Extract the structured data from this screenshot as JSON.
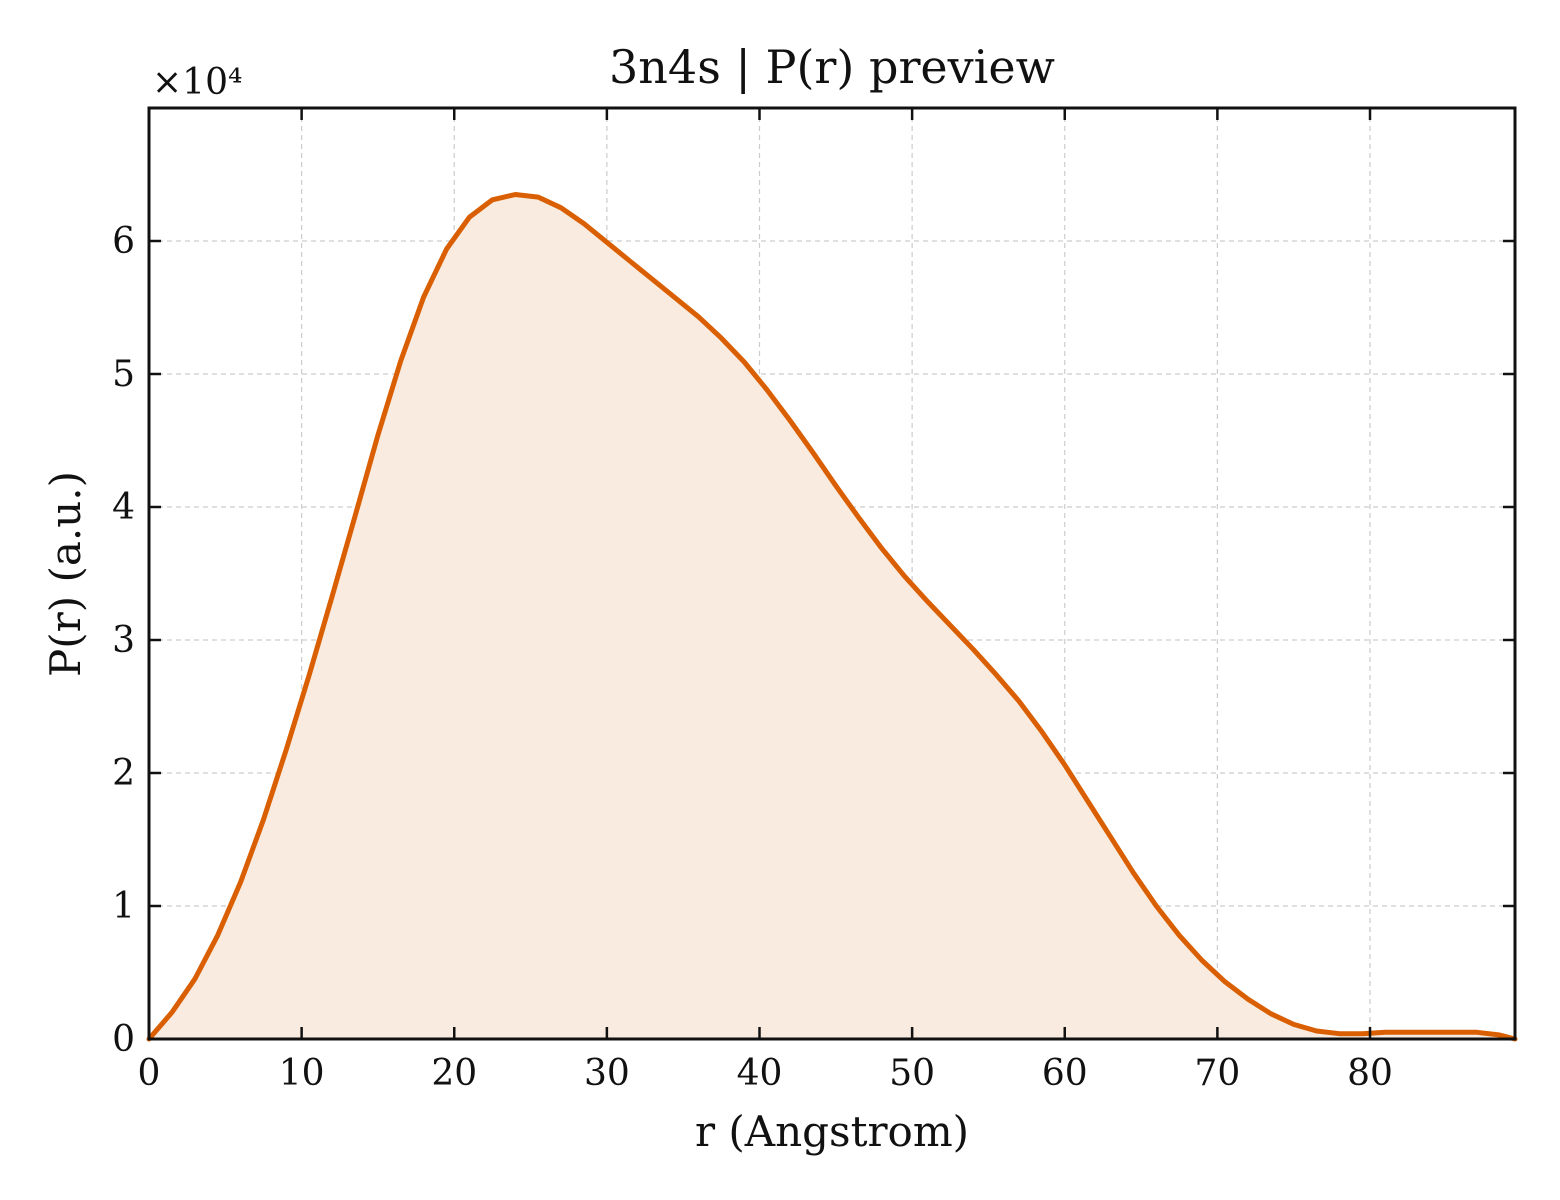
{
  "chart_data": {
    "type": "area",
    "title": "3n4s | P(r) preview",
    "xlabel": "r (Angstrom)",
    "ylabel": "P(r) (a.u.)",
    "y_offset_label": "×10⁴",
    "xlim": [
      0,
      89.5
    ],
    "ylim": [
      0,
      7.0
    ],
    "x_ticks": [
      0,
      10,
      20,
      30,
      40,
      50,
      60,
      70,
      80
    ],
    "y_ticks": [
      0,
      1,
      2,
      3,
      4,
      5,
      6
    ],
    "x_tick_labels": [
      "0",
      "10",
      "20",
      "30",
      "40",
      "50",
      "60",
      "70",
      "80"
    ],
    "y_tick_labels": [
      "0",
      "1",
      "2",
      "3",
      "4",
      "5",
      "6"
    ],
    "grid": true,
    "line_color": "#d95f02",
    "fill_color": "#f9ebe0",
    "series": [
      {
        "x": [
          0,
          1.5,
          3,
          4.5,
          6,
          7.5,
          9,
          10.5,
          12,
          13.5,
          15,
          16.5,
          18,
          19.5,
          21,
          22.5,
          24,
          25.5,
          27,
          28.5,
          30,
          31.5,
          33,
          34.5,
          36,
          37.5,
          39,
          40.5,
          42,
          43.5,
          45,
          46.5,
          48,
          49.5,
          51,
          52.5,
          54,
          55.5,
          57,
          58.5,
          60,
          61.5,
          63,
          64.5,
          66,
          67.5,
          69,
          70.5,
          72,
          73.5,
          75,
          76.5,
          78,
          79.5,
          81,
          82.5,
          84,
          85.5,
          87,
          88.5,
          89.5
        ],
        "y": [
          0.0,
          0.2,
          0.45,
          0.78,
          1.18,
          1.65,
          2.18,
          2.74,
          3.33,
          3.93,
          4.54,
          5.1,
          5.58,
          5.94,
          6.18,
          6.31,
          6.35,
          6.33,
          6.25,
          6.13,
          5.99,
          5.85,
          5.71,
          5.57,
          5.43,
          5.27,
          5.09,
          4.88,
          4.65,
          4.41,
          4.16,
          3.92,
          3.69,
          3.48,
          3.29,
          3.11,
          2.93,
          2.74,
          2.54,
          2.31,
          2.06,
          1.79,
          1.52,
          1.25,
          1.0,
          0.78,
          0.59,
          0.43,
          0.3,
          0.19,
          0.11,
          0.06,
          0.04,
          0.04,
          0.05,
          0.05,
          0.05,
          0.05,
          0.05,
          0.03,
          0.0
        ]
      }
    ]
  }
}
